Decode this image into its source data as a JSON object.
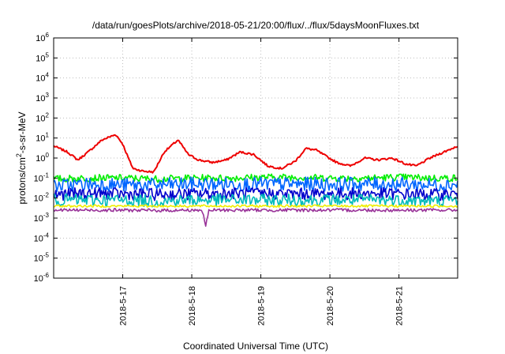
{
  "chart_data": {
    "type": "line",
    "title": "/data/run/goesPlots/archive/2018-05-21/20:00/flux/../flux/5daysMoonFluxes.txt",
    "xlabel": "Coordinated Universal Time (UTC)",
    "ylabel_parts": {
      "pre": "protons/cm",
      "sup": "2",
      "post": "-s-sr-MeV"
    },
    "y_scale": "log",
    "ylim": [
      1e-06,
      1000000.0
    ],
    "xlim": [
      16.0,
      21.85
    ],
    "x_unit": "day of May 2018",
    "y_ticks": [
      {
        "exp": -6,
        "base": "10",
        "sup": "-6"
      },
      {
        "exp": -5,
        "base": "10",
        "sup": "-5"
      },
      {
        "exp": -4,
        "base": "10",
        "sup": "-4"
      },
      {
        "exp": -3,
        "base": "10",
        "sup": "-3"
      },
      {
        "exp": -2,
        "base": "10",
        "sup": "-2"
      },
      {
        "exp": -1,
        "base": "10",
        "sup": "-1"
      },
      {
        "exp": 0,
        "base": "10",
        "sup": "0"
      },
      {
        "exp": 1,
        "base": "10",
        "sup": "1"
      },
      {
        "exp": 2,
        "base": "10",
        "sup": "2"
      },
      {
        "exp": 3,
        "base": "10",
        "sup": "3"
      },
      {
        "exp": 4,
        "base": "10",
        "sup": "4"
      },
      {
        "exp": 5,
        "base": "10",
        "sup": "5"
      },
      {
        "exp": 6,
        "base": "10",
        "sup": "6"
      }
    ],
    "x_ticks": [
      {
        "x": 17,
        "label": "2018-5-17"
      },
      {
        "x": 18,
        "label": "2018-5-18"
      },
      {
        "x": 19,
        "label": "2018-5-19"
      },
      {
        "x": 20,
        "label": "2018-5-20"
      },
      {
        "x": 21,
        "label": "2018-5-21"
      }
    ],
    "grid": true,
    "series": [
      {
        "color": "#ee0000",
        "noise": 0.05,
        "x": [
          16.0,
          16.2,
          16.35,
          16.5,
          16.7,
          16.9,
          17.0,
          17.1,
          17.15,
          17.3,
          17.45,
          17.6,
          17.8,
          17.95,
          18.1,
          18.3,
          18.5,
          18.7,
          18.9,
          19.1,
          19.3,
          19.5,
          19.65,
          19.8,
          19.95,
          20.1,
          20.3,
          20.5,
          20.7,
          20.9,
          21.1,
          21.25,
          21.45,
          21.65,
          21.85
        ],
        "y": [
          4,
          2,
          0.8,
          2,
          8,
          15,
          5,
          0.7,
          0.3,
          0.22,
          0.2,
          2,
          8,
          1.5,
          0.8,
          0.6,
          0.8,
          2,
          1.5,
          0.4,
          0.3,
          0.7,
          3,
          2.5,
          1.2,
          0.6,
          0.4,
          1,
          0.8,
          1,
          0.5,
          0.4,
          1,
          2,
          4
        ]
      },
      {
        "color": "#00ee00",
        "noise": 0.18,
        "x": [
          16.0,
          16.5,
          17.0,
          17.5,
          18.0,
          18.5,
          19.0,
          19.5,
          20.0,
          20.5,
          21.0,
          21.5,
          21.85
        ],
        "y": [
          0.09,
          0.1,
          0.1,
          0.09,
          0.1,
          0.1,
          0.11,
          0.11,
          0.1,
          0.1,
          0.11,
          0.1,
          0.1
        ]
      },
      {
        "color": "#0066ff",
        "noise": 0.35,
        "x": [
          16.0,
          16.5,
          17.0,
          17.5,
          18.0,
          18.5,
          19.0,
          19.5,
          20.0,
          20.5,
          21.0,
          21.5,
          21.85
        ],
        "y": [
          0.04,
          0.05,
          0.045,
          0.045,
          0.05,
          0.05,
          0.05,
          0.05,
          0.05,
          0.05,
          0.05,
          0.045,
          0.05
        ]
      },
      {
        "color": "#0000cc",
        "noise": 0.3,
        "x": [
          16.0,
          16.5,
          17.0,
          17.5,
          18.0,
          18.5,
          19.0,
          19.5,
          20.0,
          20.5,
          21.0,
          21.5,
          21.85
        ],
        "y": [
          0.015,
          0.017,
          0.016,
          0.015,
          0.016,
          0.017,
          0.017,
          0.016,
          0.016,
          0.017,
          0.016,
          0.015,
          0.016
        ]
      },
      {
        "color": "#00bbbb",
        "noise": 0.3,
        "x": [
          16.0,
          16.5,
          17.0,
          17.5,
          18.0,
          18.5,
          19.0,
          19.5,
          20.0,
          20.5,
          21.0,
          21.5,
          21.85
        ],
        "y": [
          0.008,
          0.008,
          0.008,
          0.007,
          0.008,
          0.008,
          0.008,
          0.008,
          0.008,
          0.008,
          0.008,
          0.007,
          0.008
        ]
      },
      {
        "color": "#eeee00",
        "noise": 0.06,
        "x": [
          16.0,
          16.5,
          17.0,
          17.5,
          18.0,
          18.5,
          19.0,
          19.5,
          20.0,
          20.5,
          21.0,
          21.5,
          21.85
        ],
        "y": [
          0.004,
          0.004,
          0.004,
          0.004,
          0.004,
          0.004,
          0.004,
          0.004,
          0.004,
          0.004,
          0.004,
          0.004,
          0.004
        ]
      },
      {
        "color": "#993399",
        "noise": 0.08,
        "x": [
          16.0,
          16.5,
          17.0,
          17.5,
          18.0,
          18.15,
          18.2,
          18.25,
          18.5,
          19.0,
          19.5,
          20.0,
          20.5,
          21.0,
          21.5,
          21.85
        ],
        "y": [
          0.0025,
          0.0025,
          0.0025,
          0.0024,
          0.0025,
          0.0025,
          0.0004,
          0.0025,
          0.0025,
          0.0025,
          0.0025,
          0.0025,
          0.0025,
          0.0025,
          0.0025,
          0.0025
        ]
      }
    ]
  }
}
